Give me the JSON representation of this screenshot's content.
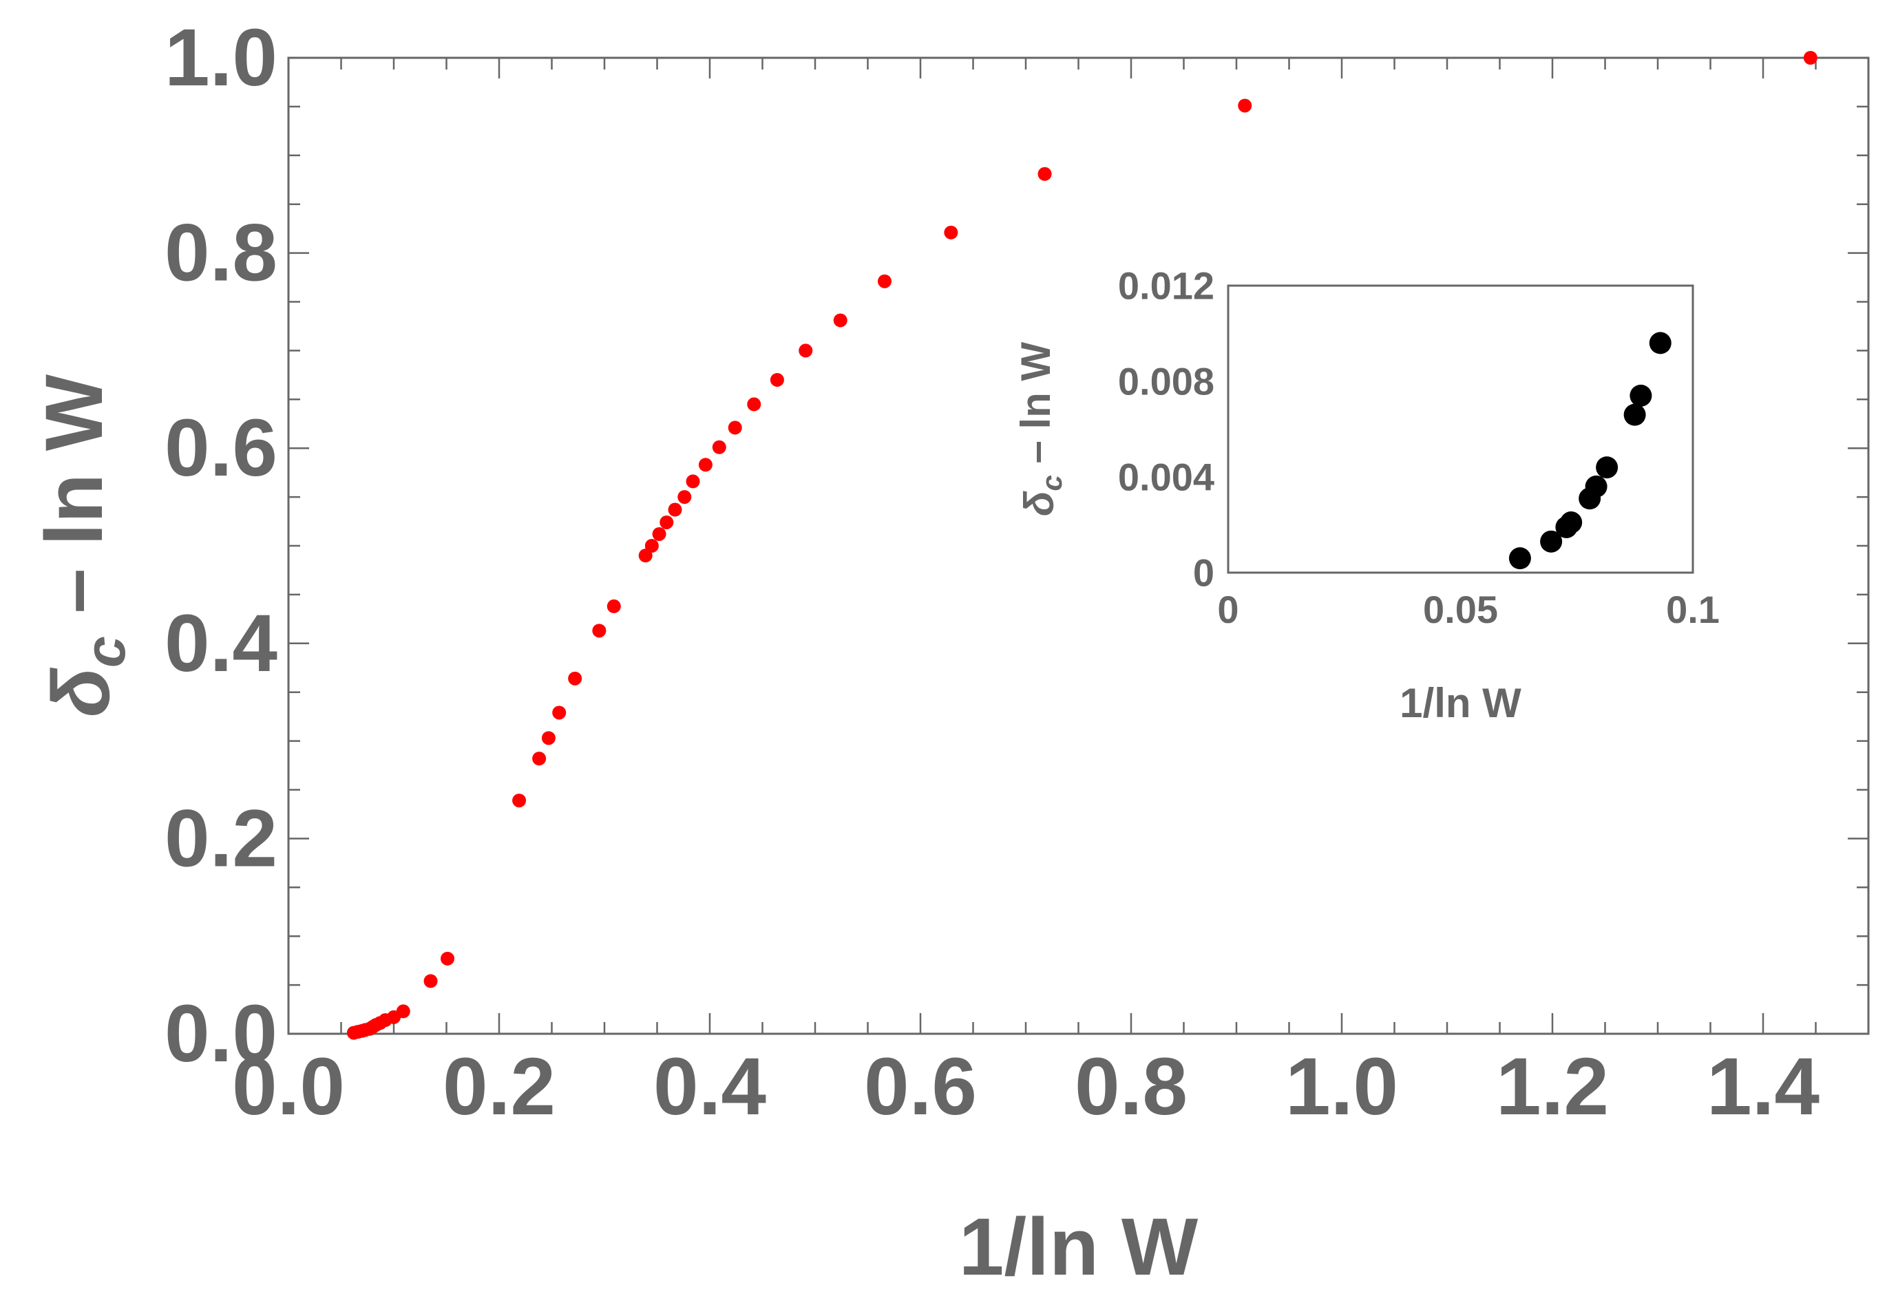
{
  "chart_data": [
    {
      "type": "scatter",
      "name": "main",
      "xlabel": "1/ln W",
      "ylabel_symbol": "δ",
      "ylabel_subscript": "c",
      "ylabel_rest": " – ln W",
      "xlim": [
        0.0,
        1.5
      ],
      "ylim": [
        0.0,
        1.0
      ],
      "x_ticks": [
        0.0,
        0.2,
        0.4,
        0.6,
        0.8,
        1.0,
        1.2,
        1.4
      ],
      "x_tick_labels": [
        "0.0",
        "0.2",
        "0.4",
        "0.6",
        "0.8",
        "1.0",
        "1.2",
        "1.4"
      ],
      "y_ticks": [
        0.0,
        0.2,
        0.4,
        0.6,
        0.8,
        1.0
      ],
      "y_tick_labels": [
        "0.0",
        "0.2",
        "0.4",
        "0.6",
        "0.8",
        "1.0"
      ],
      "minor_x_step": 0.05,
      "minor_y_step": 0.05,
      "grid": false,
      "marker_color": "#ff0000",
      "points": [
        [
          0.062,
          0.001
        ],
        [
          0.066,
          0.002
        ],
        [
          0.07,
          0.003
        ],
        [
          0.073,
          0.004
        ],
        [
          0.077,
          0.005
        ],
        [
          0.08,
          0.007
        ],
        [
          0.083,
          0.009
        ],
        [
          0.087,
          0.011
        ],
        [
          0.092,
          0.014
        ],
        [
          0.1,
          0.017
        ],
        [
          0.109,
          0.023
        ],
        [
          0.135,
          0.054
        ],
        [
          0.151,
          0.077
        ],
        [
          0.219,
          0.239
        ],
        [
          0.238,
          0.282
        ],
        [
          0.247,
          0.303
        ],
        [
          0.257,
          0.329
        ],
        [
          0.272,
          0.364
        ],
        [
          0.295,
          0.413
        ],
        [
          0.309,
          0.438
        ],
        [
          0.339,
          0.49
        ],
        [
          0.345,
          0.5
        ],
        [
          0.352,
          0.512
        ],
        [
          0.359,
          0.524
        ],
        [
          0.367,
          0.537
        ],
        [
          0.376,
          0.55
        ],
        [
          0.384,
          0.566
        ],
        [
          0.396,
          0.583
        ],
        [
          0.409,
          0.601
        ],
        [
          0.424,
          0.621
        ],
        [
          0.442,
          0.645
        ],
        [
          0.464,
          0.67
        ],
        [
          0.491,
          0.7
        ],
        [
          0.524,
          0.731
        ],
        [
          0.566,
          0.771
        ],
        [
          0.629,
          0.821
        ],
        [
          0.718,
          0.881
        ],
        [
          0.908,
          0.951
        ],
        [
          1.445,
          1.0
        ]
      ]
    },
    {
      "type": "scatter",
      "name": "inset",
      "xlabel": "1/ln W",
      "ylabel_symbol": "δ",
      "ylabel_subscript": "c",
      "ylabel_rest": " – ln W",
      "xlim": [
        0.0,
        0.1
      ],
      "ylim": [
        0.0,
        0.012
      ],
      "x_ticks": [
        0.0,
        0.05,
        0.1
      ],
      "x_tick_labels": [
        "0",
        "0.05",
        "0.1"
      ],
      "y_ticks": [
        0.0,
        0.004,
        0.008,
        0.012
      ],
      "y_tick_labels": [
        "0",
        "0.004",
        "0.008",
        "0.012"
      ],
      "grid": false,
      "marker_color": "#000000",
      "points": [
        [
          0.0628,
          0.0006
        ],
        [
          0.0695,
          0.0013
        ],
        [
          0.0728,
          0.0019
        ],
        [
          0.0738,
          0.0021
        ],
        [
          0.0778,
          0.0031
        ],
        [
          0.0792,
          0.0036
        ],
        [
          0.0815,
          0.0044
        ],
        [
          0.0875,
          0.0066
        ],
        [
          0.0888,
          0.0074
        ],
        [
          0.093,
          0.0096
        ]
      ]
    }
  ]
}
